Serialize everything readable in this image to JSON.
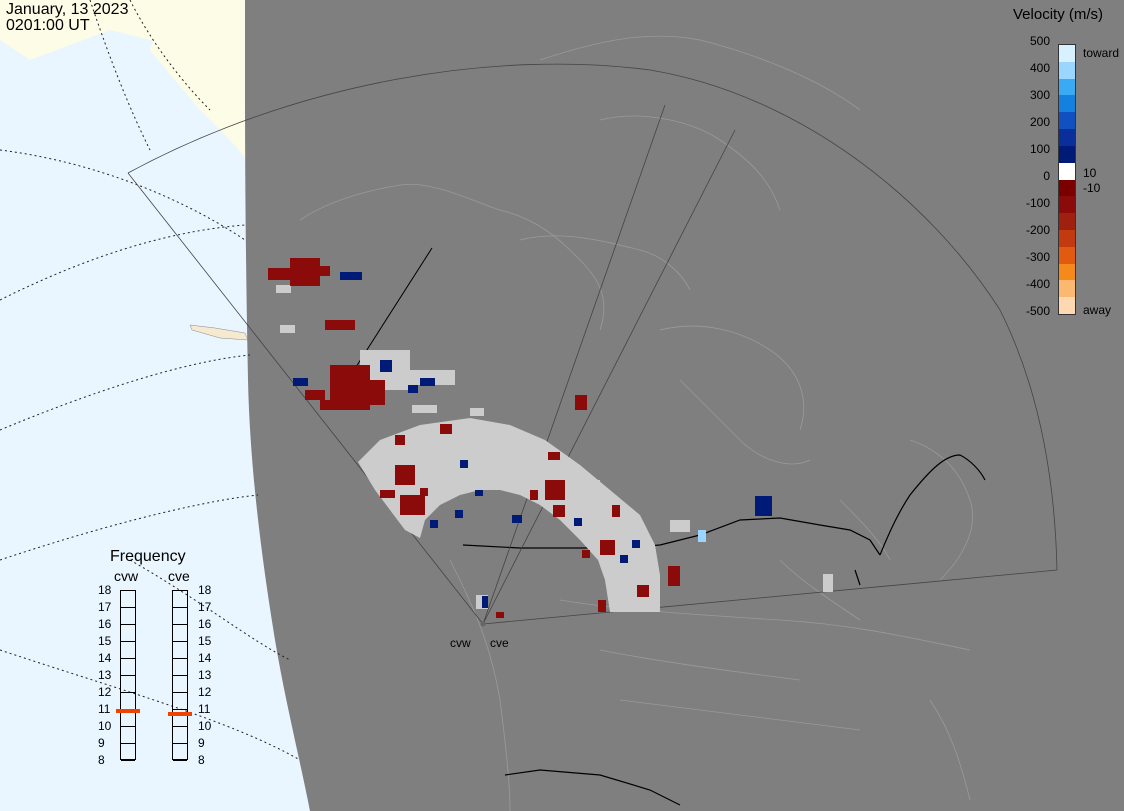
{
  "header": {
    "date": "January, 13 2023",
    "time": "0201:00 UT"
  },
  "legend": {
    "title": "Velocity (m/s)",
    "ticks": [
      "500",
      "400",
      "300",
      "200",
      "100",
      "0",
      "-100",
      "-200",
      "-300",
      "-400",
      "-500"
    ],
    "toward_label": "toward",
    "away_label": "away",
    "pos_threshold": "10",
    "neg_threshold": "-10",
    "colors": [
      "#d8f0ff",
      "#9ad6ff",
      "#3aaaf5",
      "#1480e0",
      "#1050c0",
      "#0a2f9a",
      "#001a78",
      "#ffffff",
      "#7a0000",
      "#8b0a0a",
      "#a02010",
      "#c23a10",
      "#e05a10",
      "#f58a1a",
      "#fbb870",
      "#fdd8b0"
    ]
  },
  "frequency": {
    "title": "Frequency",
    "radars": [
      {
        "name": "cvw",
        "value": 10.9
      },
      {
        "name": "cve",
        "value": 10.7
      }
    ],
    "scale": [
      "18",
      "17",
      "16",
      "15",
      "14",
      "13",
      "12",
      "11",
      "10",
      "9",
      "8"
    ]
  },
  "stations": [
    {
      "name": "cvw"
    },
    {
      "name": "cve"
    }
  ],
  "colors": {
    "ocean": "#e9f5ff",
    "land_outside": "#fdfce6",
    "night": "#7f7f7f",
    "positive": "#001a78",
    "negative": "#8b0a0a",
    "ground_scatter": "#cccccc"
  }
}
